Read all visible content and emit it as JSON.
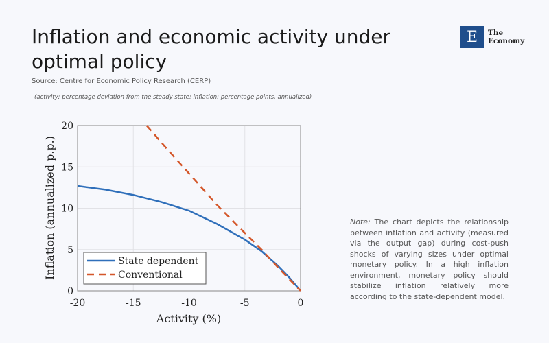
{
  "header": {
    "title": "Inflation and economic activity under optimal policy",
    "source": "Source: Centre for Economic Policy Research (CERP)",
    "units": "(activity: percentage deviation from the steady state; inflation: percentage points, annualized)"
  },
  "logo": {
    "letter": "E",
    "line1": "The",
    "line2": "Economy"
  },
  "note": {
    "label": "Note:",
    "text": " The chart depicts the relationship between inflation and activity (measured via the output gap) during cost-push shocks of varying sizes under optimal monetary policy. In a high inflation environment, monetary policy should stabilize inflation relatively more according to the state-dependent model."
  },
  "chart_data": {
    "type": "line",
    "title": "",
    "xlabel": "Activity (%)",
    "ylabel": "Inflation (annualized p.p.)",
    "xlim": [
      -20,
      0
    ],
    "ylim": [
      0,
      20
    ],
    "grid": true,
    "legend": "bottom-left",
    "xticks": [
      "-20",
      "-15",
      "-10",
      "-5",
      "0"
    ],
    "yticks": [
      "0",
      "5",
      "10",
      "15",
      "20"
    ],
    "series": [
      {
        "name": "State dependent",
        "color": "#2f6fba",
        "style": "solid",
        "x": [
          -20,
          -17.5,
          -15,
          -12.5,
          -10,
          -7.5,
          -5,
          -3.5,
          -2,
          -1,
          0
        ],
        "y": [
          12.7,
          12.25,
          11.6,
          10.75,
          9.7,
          8.1,
          6.2,
          4.8,
          3.0,
          1.6,
          0
        ]
      },
      {
        "name": "Conventional",
        "color": "#d4572a",
        "style": "dashed",
        "x": [
          -13.8,
          -12,
          -10,
          -7.5,
          -5,
          -3.5,
          -2,
          -1,
          0
        ],
        "y": [
          20,
          17.2,
          14.2,
          10.4,
          7.0,
          5.0,
          2.8,
          1.4,
          0
        ]
      }
    ]
  }
}
